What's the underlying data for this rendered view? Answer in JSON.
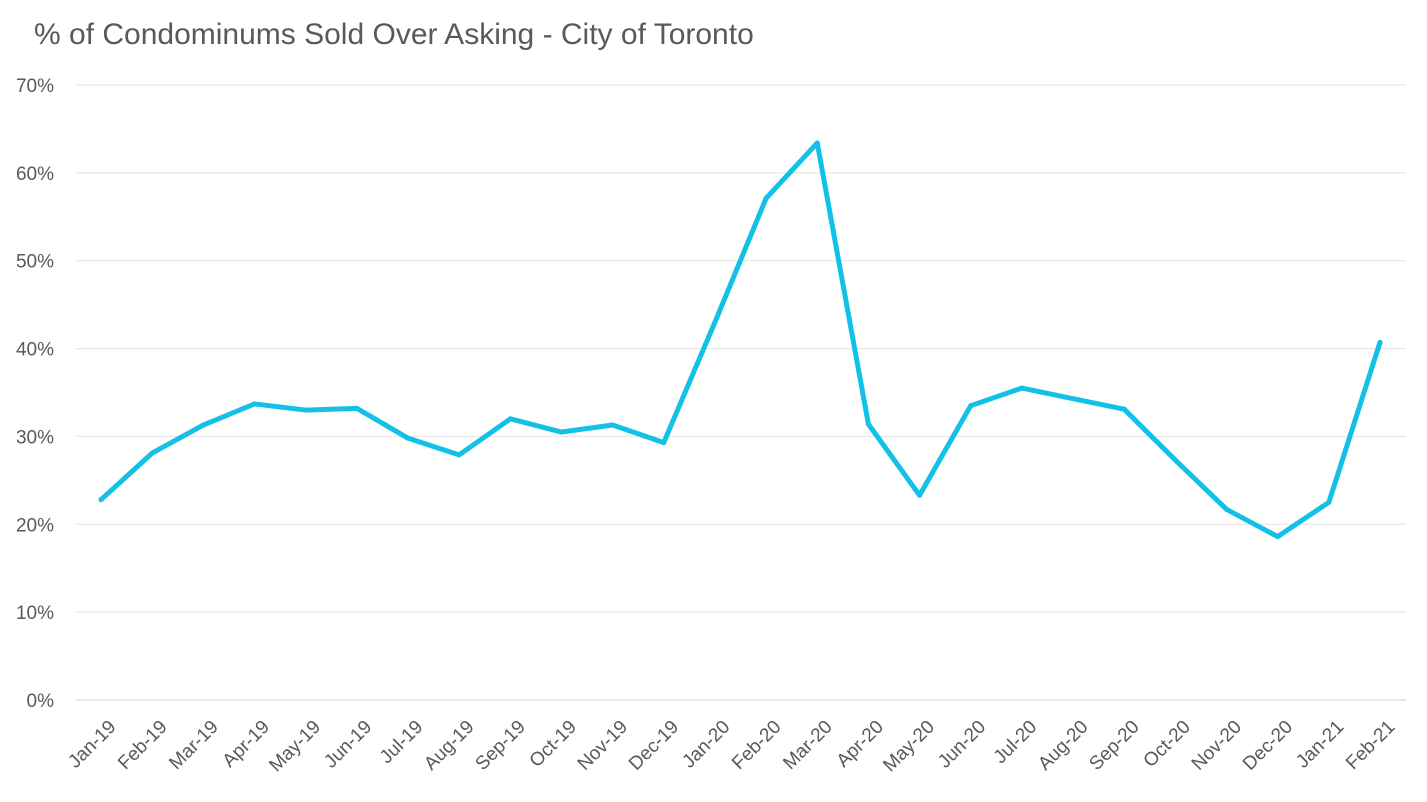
{
  "chart_data": {
    "type": "line",
    "title": "% of Condominums Sold Over Asking - City of Toronto",
    "xlabel": "",
    "ylabel": "",
    "ylim": [
      0,
      70
    ],
    "yticks": [
      "0%",
      "10%",
      "20%",
      "30%",
      "40%",
      "50%",
      "60%",
      "70%"
    ],
    "grid": true,
    "legend": "none",
    "line_color": "#13C0E6",
    "categories": [
      "Jan-19",
      "Feb-19",
      "Mar-19",
      "Apr-19",
      "May-19",
      "Jun-19",
      "Jul-19",
      "Aug-19",
      "Sep-19",
      "Oct-19",
      "Nov-19",
      "Dec-19",
      "Jan-20",
      "Feb-20",
      "Mar-20",
      "Apr-20",
      "May-20",
      "Jun-20",
      "Jul-20",
      "Aug-20",
      "Sep-20",
      "Oct-20",
      "Nov-20",
      "Dec-20",
      "Jan-21",
      "Feb-21"
    ],
    "series": [
      {
        "values": [
          22.8,
          28.1,
          31.3,
          33.7,
          33.0,
          33.2,
          29.8,
          27.9,
          32.0,
          30.5,
          31.3,
          29.3,
          43.0,
          57.1,
          63.4,
          31.4,
          23.3,
          33.5,
          35.5,
          34.3,
          33.1,
          27.3,
          21.7,
          18.6,
          22.5,
          40.7
        ]
      }
    ]
  }
}
